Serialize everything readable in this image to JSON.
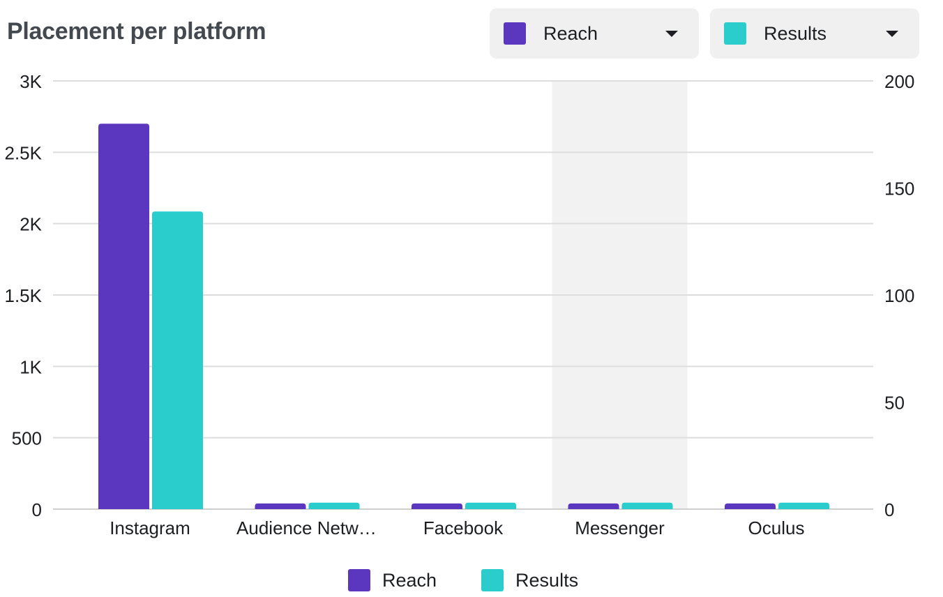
{
  "title": "Placement per platform",
  "selectors": [
    {
      "label": "Reach",
      "color": "#5b36be",
      "icon": "chevron-down-icon"
    },
    {
      "label": "Results",
      "color": "#2bcccc",
      "icon": "chevron-down-icon"
    }
  ],
  "chart_data": {
    "type": "bar",
    "categories": [
      "Instagram",
      "Audience Netw…",
      "Facebook",
      "Messenger",
      "Oculus"
    ],
    "highlighted_category": "Messenger",
    "series": [
      {
        "name": "Reach",
        "axis": "left",
        "color": "#5b36be",
        "values": [
          2700,
          40,
          40,
          40,
          40
        ]
      },
      {
        "name": "Results",
        "axis": "right",
        "color": "#2bcccc",
        "values": [
          139,
          3,
          3,
          3,
          3
        ]
      }
    ],
    "y_left": {
      "ylim": [
        0,
        3000
      ],
      "ticks": [
        0,
        500,
        1000,
        1500,
        2000,
        2500,
        3000
      ],
      "tick_labels": [
        "0",
        "500",
        "1K",
        "1.5K",
        "2K",
        "2.5K",
        "3K"
      ]
    },
    "y_right": {
      "ylim": [
        0,
        200
      ],
      "ticks": [
        0,
        50,
        100,
        150,
        200
      ],
      "tick_labels": [
        "0",
        "50",
        "100",
        "150",
        "200"
      ]
    },
    "grid": true,
    "legend": "bottom-center"
  }
}
